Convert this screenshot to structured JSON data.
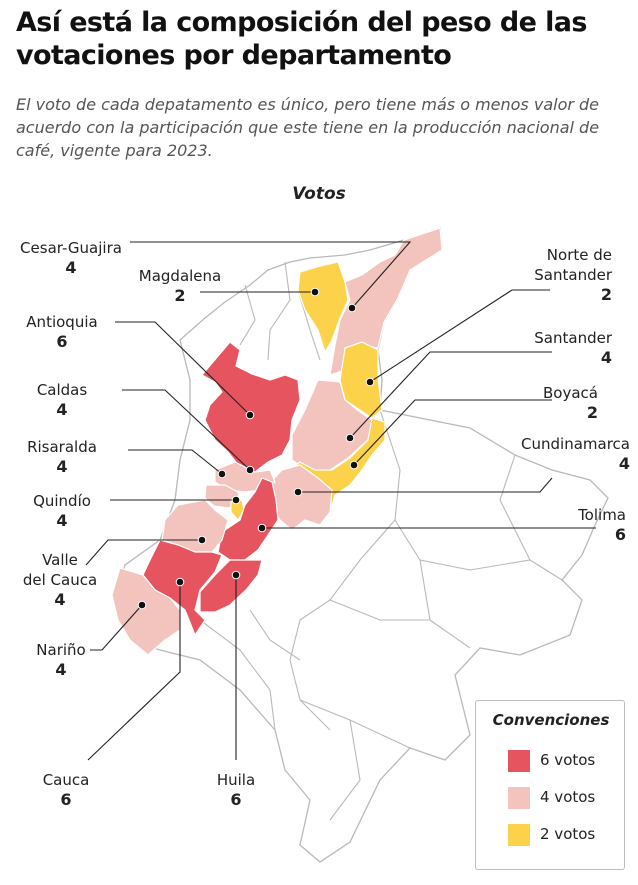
{
  "header": {
    "title": "Así está la composición del peso de las votaciones por departamento",
    "subtitle": "El voto de cada depatamento es único, pero tiene más o menos valor de acuerdo con la participación que este tiene en la producción nacional de café, vigente para 2023."
  },
  "map": {
    "title": "Votos"
  },
  "colors": {
    "six_votes": "#e5545f",
    "four_votes": "#f3c3be",
    "two_votes": "#fbd24a",
    "outline": "#b9b9b9",
    "leader": "#222222"
  },
  "departments": [
    {
      "id": "cesar-guajira",
      "name": "Cesar-Guajira",
      "votes": "4"
    },
    {
      "id": "magdalena",
      "name": "Magdalena",
      "votes": "2"
    },
    {
      "id": "antioquia",
      "name": "Antioquia",
      "votes": "6"
    },
    {
      "id": "caldas",
      "name": "Caldas",
      "votes": "4"
    },
    {
      "id": "risaralda",
      "name": "Risaralda",
      "votes": "4"
    },
    {
      "id": "quindio",
      "name": "Quindío",
      "votes": "4"
    },
    {
      "id": "valle",
      "name": "Valle del Cauca",
      "name_line1": "Valle",
      "name_line2": "del Cauca",
      "votes": "4"
    },
    {
      "id": "narino",
      "name": "Nariño",
      "votes": "4"
    },
    {
      "id": "cauca",
      "name": "Cauca",
      "votes": "6"
    },
    {
      "id": "huila",
      "name": "Huila",
      "votes": "6"
    },
    {
      "id": "norte-santander",
      "name": "Norte de Santander",
      "name_line1": "Norte de",
      "name_line2": "Santander",
      "votes": "2"
    },
    {
      "id": "santander",
      "name": "Santander",
      "votes": "4"
    },
    {
      "id": "boyaca",
      "name": "Boyacá",
      "votes": "2"
    },
    {
      "id": "cundinamarca",
      "name": "Cundinamarca",
      "votes": "4"
    },
    {
      "id": "tolima",
      "name": "Tolima",
      "votes": "6"
    }
  ],
  "legend": {
    "title": "Convenciones",
    "items": [
      {
        "label": "6 votos",
        "color": "#e5545f"
      },
      {
        "label": "4 votos",
        "color": "#f3c3be"
      },
      {
        "label": "2 votos",
        "color": "#fbd24a"
      }
    ]
  }
}
